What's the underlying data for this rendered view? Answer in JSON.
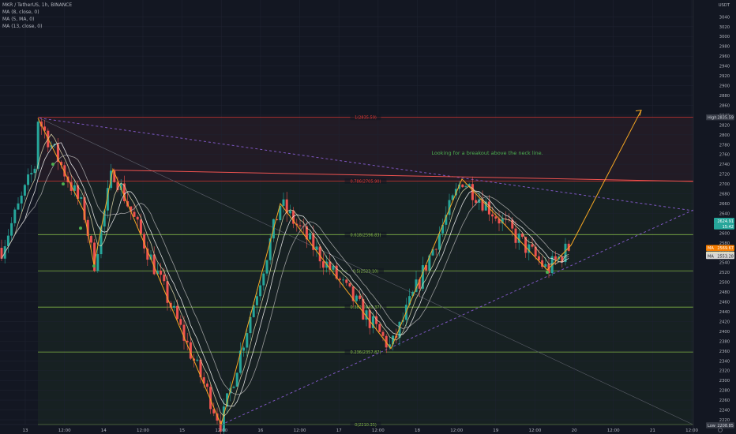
{
  "header": {
    "symbol": "MKR / TetherUS, 1h, BINANCE",
    "indicators": [
      "MA (8, close, 0)",
      "MA (5, MA, 0)",
      "MA (13, close, 0)"
    ],
    "currency": "USDT"
  },
  "chart_data": {
    "type": "candlestick",
    "y_ticks": [
      3040,
      3020,
      3000,
      2980,
      2960,
      2940,
      2920,
      2900,
      2880,
      2860,
      2840,
      2820,
      2800,
      2780,
      2760,
      2740,
      2720,
      2700,
      2680,
      2660,
      2640,
      2620,
      2600,
      2580,
      2560,
      2540,
      2520,
      2500,
      2480,
      2460,
      2440,
      2420,
      2400,
      2380,
      2360,
      2340,
      2320,
      2300,
      2280,
      2260,
      2240,
      2220,
      2200
    ],
    "x_ticks": [
      "13",
      "12:00",
      "14",
      "12:00",
      "15",
      "12:00",
      "16",
      "12:00",
      "17",
      "12:00",
      "18",
      "12:00",
      "19",
      "12:00",
      "20",
      "12:00",
      "21",
      "12:00"
    ],
    "annotation": "Looking for a breakout above the neck line.",
    "fib_levels": [
      {
        "label": "1(2835.59)",
        "value": 2835.59,
        "color": "#e53935"
      },
      {
        "label": "0.786(2705.90)",
        "value": 2705.9,
        "color": "#e53935"
      },
      {
        "label": "0.618(2596.83)",
        "value": 2596.83,
        "color": "#8bc34a"
      },
      {
        "label": "0.5(2523.10)",
        "value": 2523.1,
        "color": "#8bc34a"
      },
      {
        "label": "0.382(2449.37)",
        "value": 2449.37,
        "color": "#8bc34a"
      },
      {
        "label": "0.236(2357.87)",
        "value": 2357.87,
        "color": "#8bc34a"
      },
      {
        "label": "0(2210.35)",
        "value": 2210.35,
        "color": "#8bc34a"
      }
    ],
    "price_tags": [
      {
        "label": "High",
        "value": "2835.59",
        "price": 2835.59,
        "bg": "#363a45",
        "fg": "#d1d4dc"
      },
      {
        "label": "",
        "value": "2624.91",
        "price": 2624.91,
        "bg": "#26a69a",
        "fg": "#ffffff"
      },
      {
        "label": "",
        "value": "15:42",
        "price": 2613.5,
        "bg": "#26a69a",
        "fg": "#ffffff"
      },
      {
        "label": "MA",
        "value": "2569.67",
        "price": 2569.67,
        "bg": "#f57c00",
        "fg": "#ffffff"
      },
      {
        "label": "MA",
        "value": "2556.58",
        "price": 2556.58,
        "bg": "#e8e0b0",
        "fg": "#222222"
      },
      {
        "label": "MA",
        "value": "2553.28",
        "price": 2553.28,
        "bg": "#d6d6d6",
        "fg": "#222222"
      },
      {
        "label": "Low",
        "value": "2208.85",
        "price": 2208.85,
        "bg": "#363a45",
        "fg": "#d1d4dc"
      }
    ],
    "zigzag": [
      [
        48,
        2834
      ],
      [
        106,
        2645
      ],
      [
        119,
        2535
      ],
      [
        143,
        2730
      ],
      [
        280,
        2210
      ],
      [
        355,
        2660
      ],
      [
        495,
        2365
      ],
      [
        585,
        2710
      ],
      [
        693,
        2525
      ],
      [
        723,
        2575
      ],
      [
        812,
        2850
      ]
    ],
    "colors": {
      "up": "#26a69a",
      "down": "#ef5350",
      "zigzag": "#f5a623",
      "ma1": "#ffffff",
      "ma2": "#e8e0b0",
      "ma3": "#b0b0b0"
    }
  }
}
